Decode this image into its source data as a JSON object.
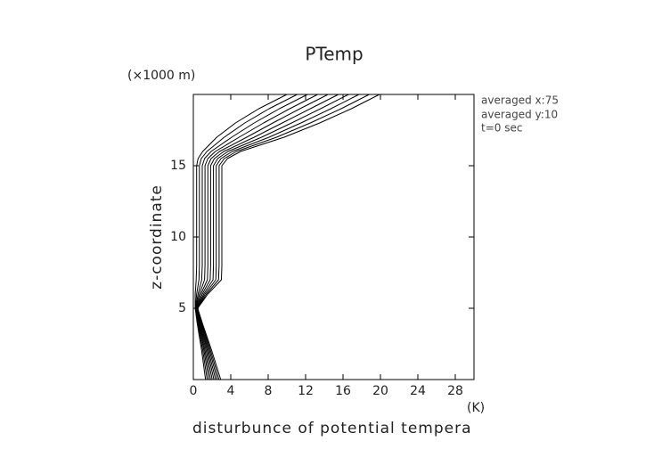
{
  "chart_data": {
    "type": "line",
    "title": "PTemp",
    "y_unit": "(×1000 m)",
    "y_label": "z-coordinate",
    "x_label": "disturbunce of potential tempera",
    "x_unit": "(K)",
    "notes": [
      "averaged  x:75",
      "averaged  y:10",
      "t=0 sec"
    ],
    "orientation": "horizontal",
    "z": [
      0,
      2,
      4,
      5,
      6,
      7,
      8,
      10,
      12,
      14,
      15,
      15.5,
      16,
      17,
      18,
      19,
      20
    ],
    "color": "#000000",
    "series": [
      {
        "values": [
          1.3,
          0.9,
          0.4,
          0.2,
          0.2,
          0.3,
          0.35,
          0.35,
          0.35,
          0.35,
          0.35,
          0.5,
          1,
          2.5,
          4.5,
          7,
          10
        ]
      },
      {
        "values": [
          1.48,
          1.02,
          0.46,
          0.23,
          0.35,
          0.6,
          0.65,
          0.65,
          0.65,
          0.65,
          0.65,
          0.85,
          1.45,
          3.3,
          5.5,
          8.1,
          11.1
        ]
      },
      {
        "values": [
          1.66,
          1.14,
          0.52,
          0.26,
          0.5,
          0.9,
          0.95,
          0.95,
          0.95,
          0.95,
          0.95,
          1.2,
          1.9,
          4.1,
          6.5,
          9.2,
          12.2
        ]
      },
      {
        "values": [
          1.84,
          1.26,
          0.58,
          0.29,
          0.65,
          1.2,
          1.25,
          1.25,
          1.25,
          1.25,
          1.25,
          1.55,
          2.35,
          4.9,
          7.5,
          10.3,
          13.3
        ]
      },
      {
        "values": [
          2.02,
          1.38,
          0.64,
          0.32,
          0.8,
          1.5,
          1.55,
          1.55,
          1.55,
          1.55,
          1.55,
          1.9,
          2.8,
          5.7,
          8.5,
          11.4,
          14.4
        ]
      },
      {
        "values": [
          2.2,
          1.5,
          0.7,
          0.35,
          0.95,
          1.8,
          1.85,
          1.85,
          1.85,
          1.85,
          1.85,
          2.25,
          3.25,
          6.5,
          9.5,
          12.5,
          15.5
        ]
      },
      {
        "values": [
          2.38,
          1.62,
          0.76,
          0.38,
          1.1,
          2.1,
          2.15,
          2.15,
          2.15,
          2.15,
          2.15,
          2.6,
          3.7,
          7.3,
          10.5,
          13.6,
          16.6
        ]
      },
      {
        "values": [
          2.56,
          1.74,
          0.82,
          0.41,
          1.25,
          2.4,
          2.45,
          2.45,
          2.45,
          2.45,
          2.45,
          2.95,
          4.15,
          8.1,
          11.5,
          14.7,
          17.7
        ]
      },
      {
        "values": [
          2.74,
          1.86,
          0.88,
          0.44,
          1.4,
          2.7,
          2.75,
          2.75,
          2.75,
          2.75,
          2.75,
          3.3,
          4.6,
          8.9,
          12.5,
          15.8,
          18.8
        ]
      },
      {
        "values": [
          2.92,
          1.98,
          0.94,
          0.47,
          1.55,
          3.0,
          3.05,
          3.05,
          3.05,
          3.05,
          3.05,
          3.65,
          5.05,
          9.7,
          13.5,
          16.9,
          19.9
        ]
      }
    ],
    "xlim": [
      0,
      30
    ],
    "xticks": [
      0,
      4,
      8,
      12,
      16,
      20,
      24,
      28
    ],
    "ylim": [
      0,
      20
    ],
    "yticks": [
      5,
      10,
      15
    ]
  }
}
